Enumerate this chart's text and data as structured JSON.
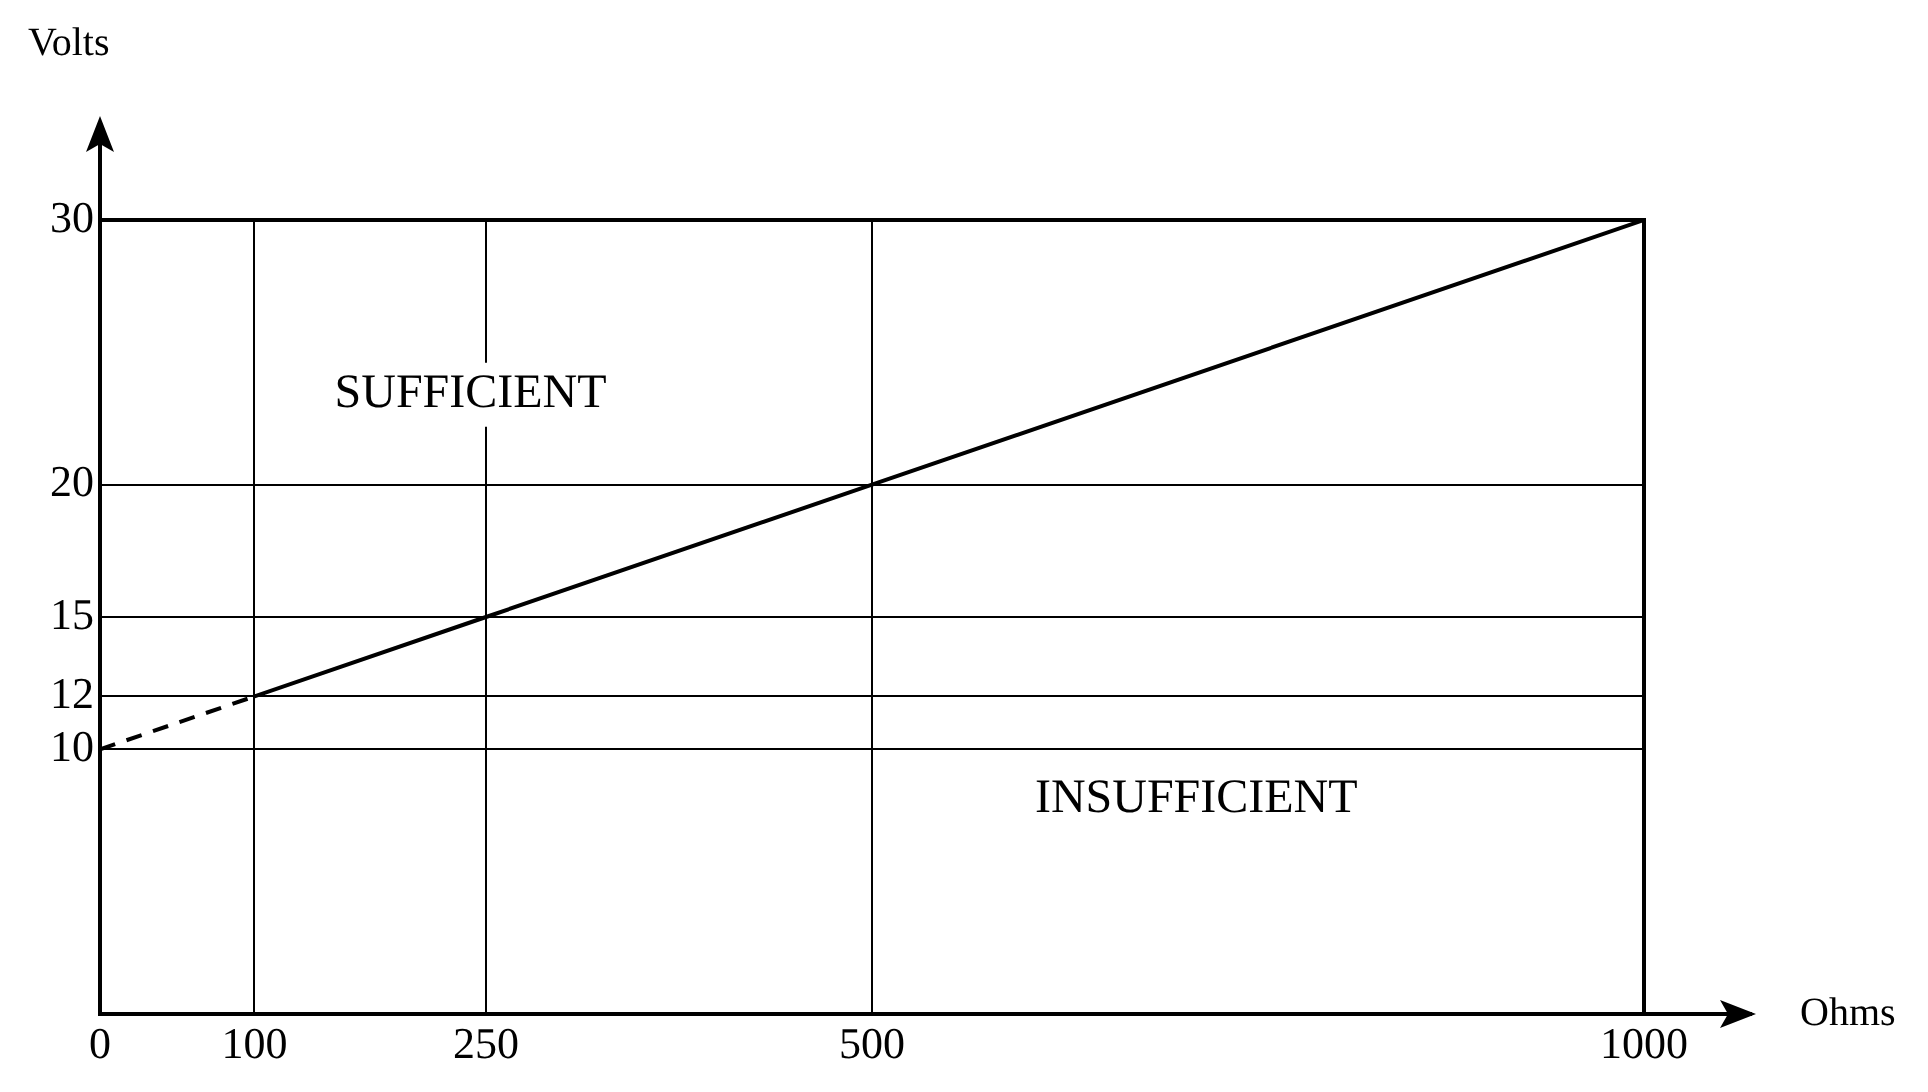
{
  "chart_data": {
    "type": "line",
    "xlabel": "Ohms",
    "ylabel": "Volts",
    "xlim": [
      0,
      1000
    ],
    "xticks": [
      0,
      100,
      250,
      500,
      1000
    ],
    "ylim": [
      0,
      30
    ],
    "yticks": [
      10,
      12,
      15,
      20,
      30
    ],
    "grid": true,
    "legend": false,
    "marker": "none",
    "series": [
      {
        "x": [
          100,
          250,
          500,
          1000
        ],
        "values": [
          12,
          15,
          20,
          30
        ],
        "color": "#000000",
        "line_style": "solid"
      },
      {
        "x": [
          0,
          100
        ],
        "values": [
          10,
          12
        ],
        "color": "#000000",
        "line_style": "dashed"
      }
    ],
    "annotations": [
      "SUFFICIENT",
      "INSUFFICIENT"
    ]
  }
}
